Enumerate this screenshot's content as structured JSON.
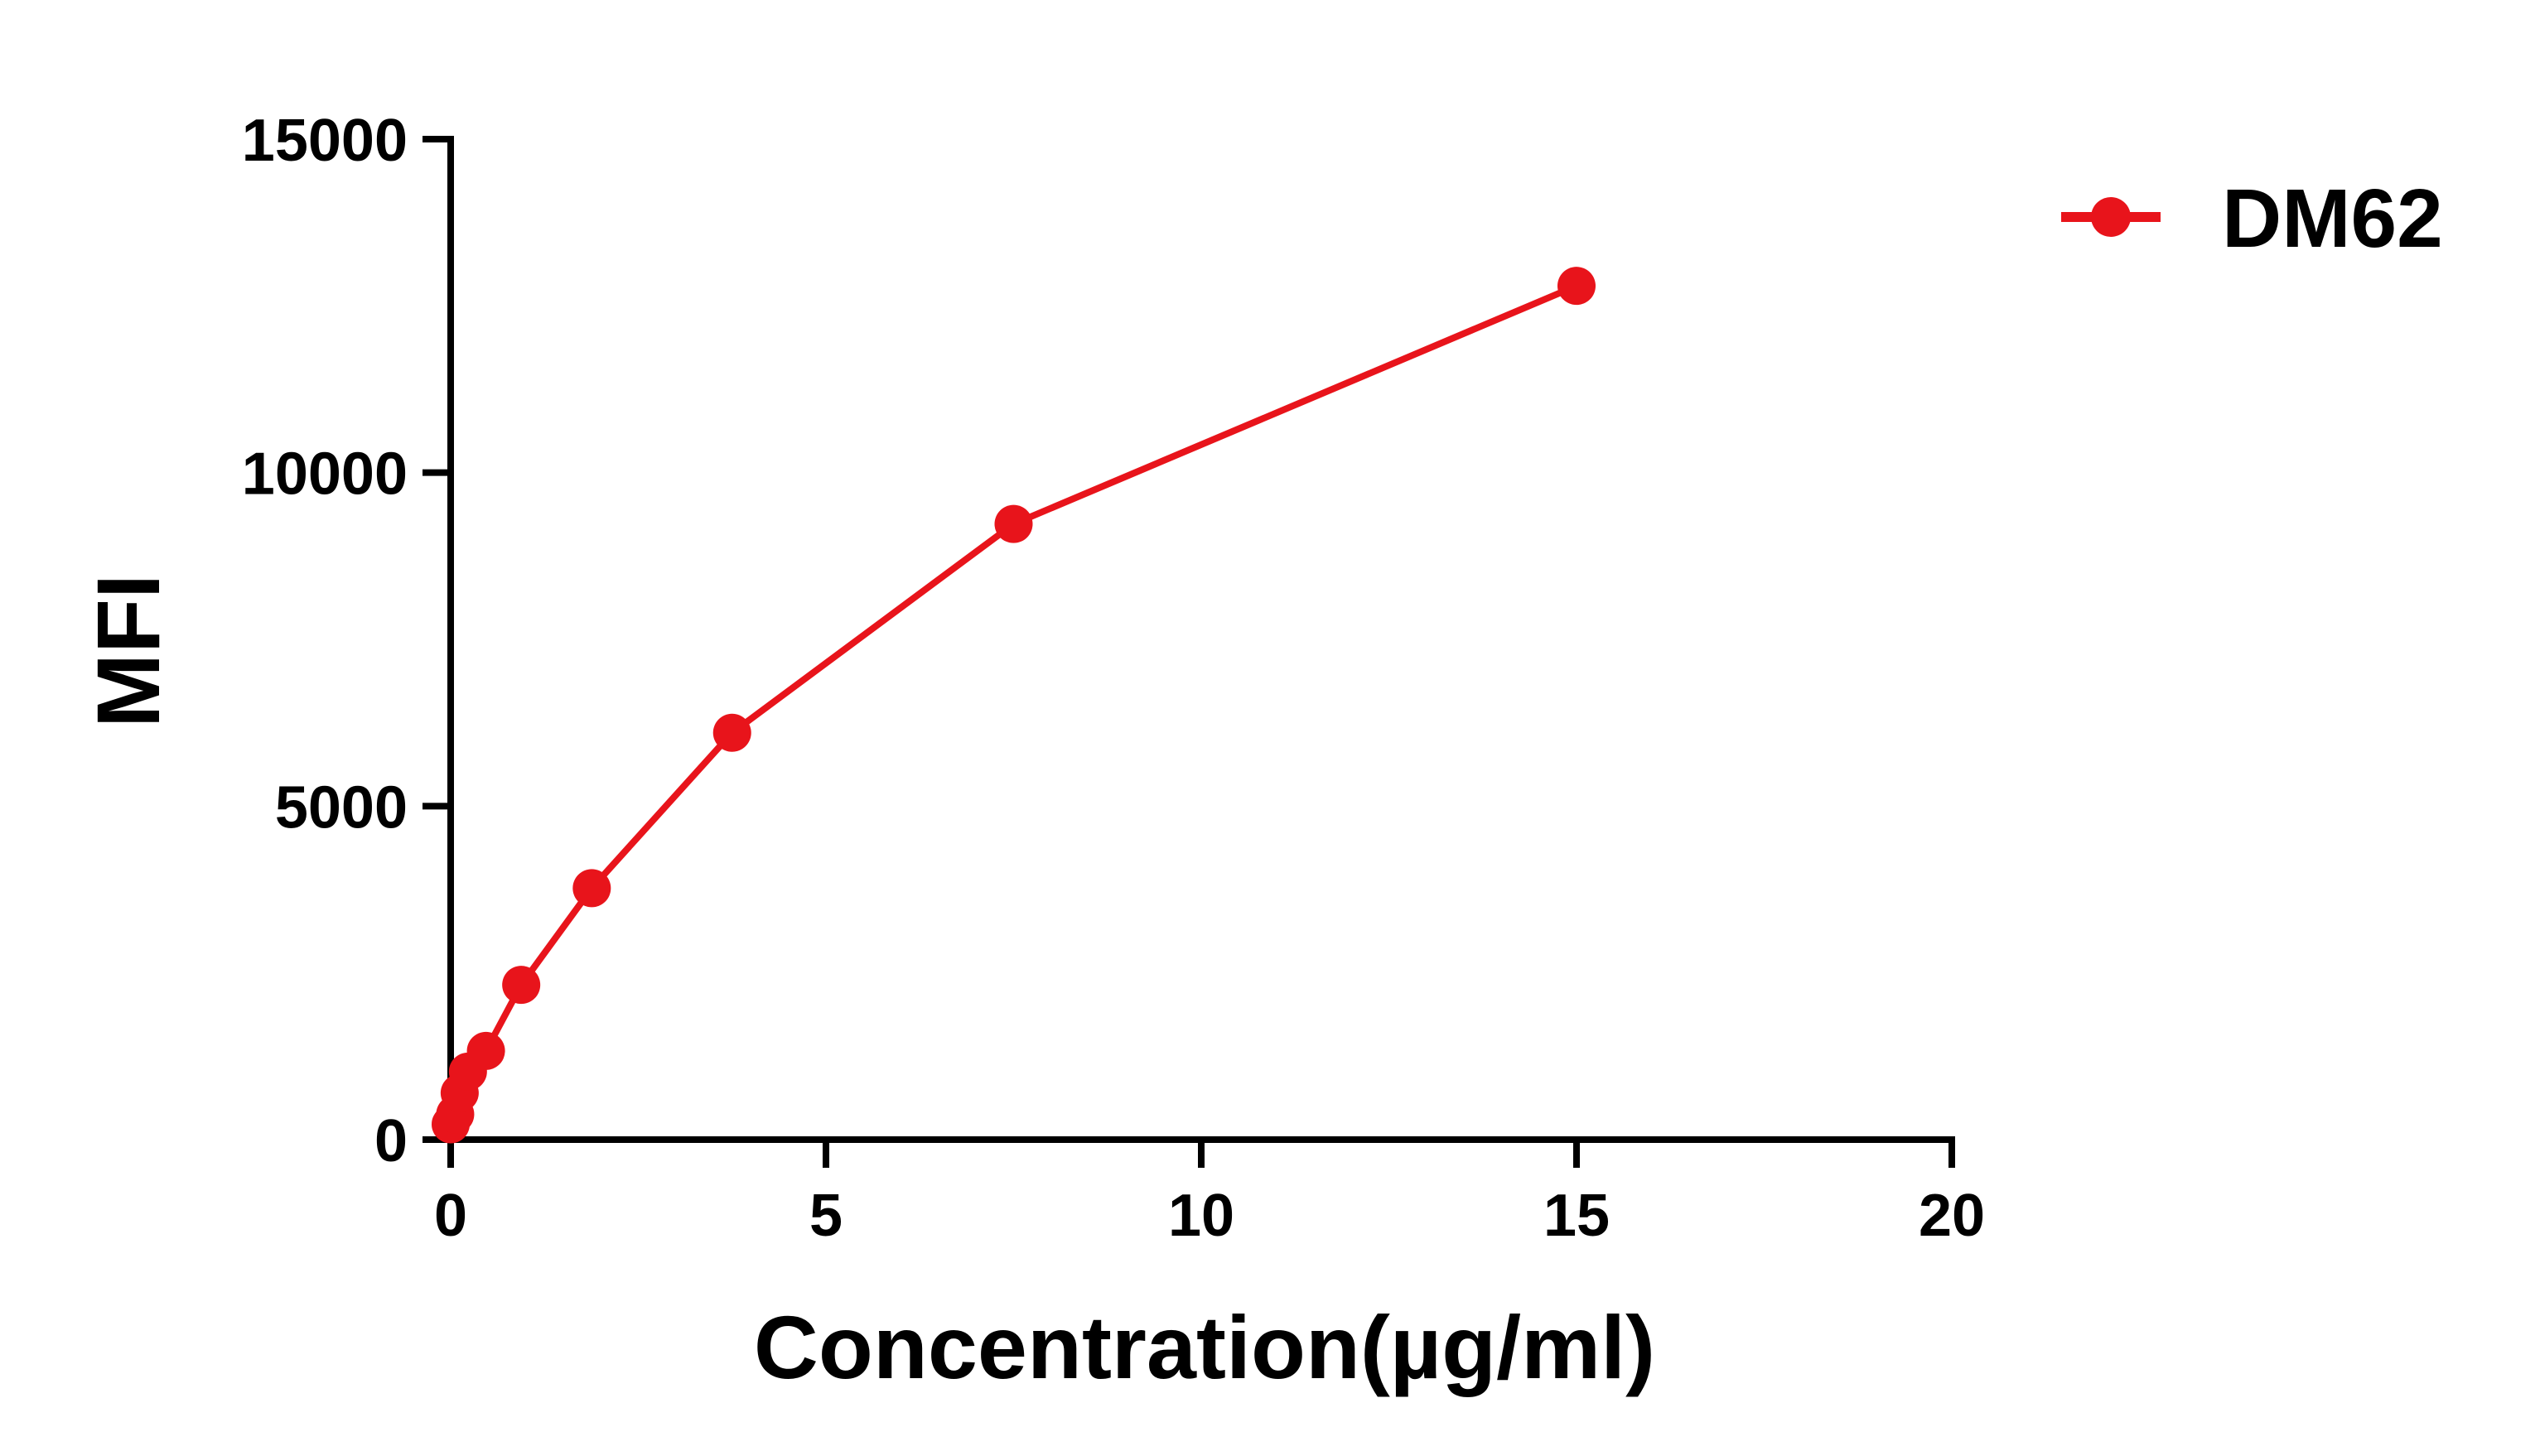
{
  "chart_data": {
    "type": "line",
    "title": "",
    "xlabel": "Concentration(µg/ml)",
    "ylabel": "MFI",
    "xlim": [
      0,
      20
    ],
    "ylim": [
      0,
      15000
    ],
    "x_ticks": [
      "0",
      "5",
      "10",
      "15",
      "20"
    ],
    "y_ticks": [
      "0",
      "5000",
      "10000",
      "15000"
    ],
    "grid": false,
    "legend_position": "top-right",
    "series": [
      {
        "name": "DM62",
        "color": "#e8141b",
        "marker": "circle",
        "points": [
          {
            "x": 0.0,
            "y": 230
          },
          {
            "x": 0.06,
            "y": 380
          },
          {
            "x": 0.12,
            "y": 700
          },
          {
            "x": 0.23,
            "y": 1020
          },
          {
            "x": 0.47,
            "y": 1330
          },
          {
            "x": 0.94,
            "y": 2320
          },
          {
            "x": 1.88,
            "y": 3770
          },
          {
            "x": 3.75,
            "y": 6100
          },
          {
            "x": 7.5,
            "y": 9230
          },
          {
            "x": 15.0,
            "y": 12800
          }
        ]
      }
    ]
  }
}
